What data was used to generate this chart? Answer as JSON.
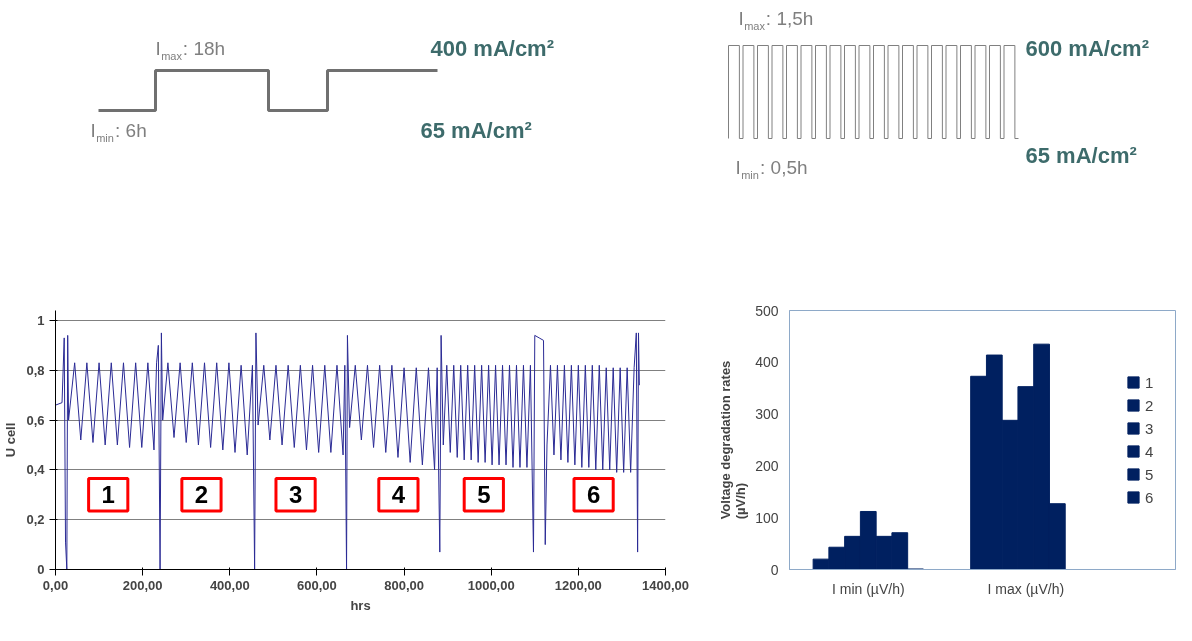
{
  "chart_data": [
    {
      "type": "other",
      "annotations": [
        "I$_{max}$: 18h",
        "400 mA/cm²",
        "I$_{min}$: 6h",
        "65 mA/cm²",
        "I$_{max}$: 1,5h",
        "600 mA/cm²",
        "I$_{min}$: 0,5h",
        "65 mA/cm²"
      ]
    },
    {
      "type": "line",
      "xlabel": "hrs",
      "ylabel": "U cell",
      "xlim": [
        0,
        1400
      ],
      "ylim": [
        0,
        1.04
      ],
      "xticks": [
        {
          "value": 0,
          "label": "0,00"
        },
        {
          "value": 200,
          "label": "200,00"
        },
        {
          "value": 400,
          "label": "400,00"
        },
        {
          "value": 600,
          "label": "600,00"
        },
        {
          "value": 800,
          "label": "800,00"
        },
        {
          "value": 1000,
          "label": "1000,00"
        },
        {
          "value": 1200,
          "label": "1200,00"
        },
        {
          "value": 1400,
          "label": "1400,00"
        }
      ],
      "yticks": [
        0,
        {
          "value": 0.2,
          "label": "0,2"
        },
        {
          "value": 0.4,
          "label": "0,4"
        },
        {
          "value": 0.6,
          "label": "0,6"
        },
        {
          "value": 0.8,
          "label": "0,8"
        },
        1
      ],
      "grid": "y",
      "legend": false,
      "marker": "none",
      "line_style": "solid",
      "annotations": [
        {
          "text": "1",
          "x": 121,
          "y": 0.3
        },
        {
          "text": "2",
          "x": 335,
          "y": 0.3
        },
        {
          "text": "3",
          "x": 551,
          "y": 0.3
        },
        {
          "text": "4",
          "x": 787,
          "y": 0.3
        },
        {
          "text": "5",
          "x": 983,
          "y": 0.3
        },
        {
          "text": "6",
          "x": 1235,
          "y": 0.3
        }
      ],
      "series": [
        {
          "color": "#2b2b95",
          "x": [
            0,
            15,
            20,
            23,
            26,
            28,
            30,
            44,
            58,
            72,
            86,
            100,
            114,
            128,
            142,
            156,
            170,
            184,
            198,
            212,
            226,
            232,
            236,
            240,
            243,
            246,
            258,
            272,
            286,
            300,
            314,
            328,
            342,
            356,
            370,
            384,
            398,
            412,
            426,
            440,
            452,
            457,
            460,
            465,
            478,
            492,
            506,
            520,
            534,
            548,
            562,
            576,
            590,
            604,
            618,
            632,
            646,
            660,
            664,
            668,
            670,
            675,
            688,
            702,
            716,
            730,
            744,
            758,
            772,
            786,
            800,
            814,
            828,
            842,
            856,
            870,
            876,
            882,
            885,
            890,
            898,
            906,
            914,
            922,
            930,
            938,
            946,
            954,
            962,
            970,
            978,
            986,
            994,
            1002,
            1010,
            1018,
            1026,
            1034,
            1042,
            1050,
            1058,
            1066,
            1074,
            1082,
            1090,
            1097,
            1100,
            1110,
            1120,
            1124,
            1128,
            1136,
            1144,
            1152,
            1160,
            1168,
            1176,
            1184,
            1192,
            1200,
            1208,
            1216,
            1224,
            1232,
            1240,
            1248,
            1256,
            1264,
            1272,
            1280,
            1288,
            1296,
            1304,
            1312,
            1320,
            1328,
            1333,
            1336,
            1338,
            1340
          ],
          "values": [
            0.66,
            0.67,
            0.93,
            0.11,
            0.0,
            0.94,
            0.6,
            0.83,
            0.52,
            0.83,
            0.51,
            0.83,
            0.5,
            0.83,
            0.5,
            0.83,
            0.49,
            0.83,
            0.49,
            0.83,
            0.48,
            0.83,
            0.9,
            0.0,
            0.95,
            0.6,
            0.83,
            0.53,
            0.83,
            0.51,
            0.83,
            0.5,
            0.83,
            0.49,
            0.83,
            0.48,
            0.83,
            0.47,
            0.82,
            0.46,
            0.82,
            0.0,
            0.95,
            0.58,
            0.82,
            0.52,
            0.82,
            0.5,
            0.82,
            0.49,
            0.82,
            0.48,
            0.82,
            0.47,
            0.82,
            0.47,
            0.82,
            0.46,
            0.82,
            0.0,
            0.94,
            0.57,
            0.82,
            0.52,
            0.82,
            0.49,
            0.82,
            0.47,
            0.82,
            0.45,
            0.81,
            0.43,
            0.81,
            0.42,
            0.81,
            0.4,
            0.81,
            0.07,
            0.94,
            0.5,
            0.82,
            0.47,
            0.82,
            0.45,
            0.82,
            0.44,
            0.82,
            0.44,
            0.82,
            0.43,
            0.82,
            0.43,
            0.82,
            0.42,
            0.82,
            0.42,
            0.82,
            0.42,
            0.82,
            0.41,
            0.82,
            0.41,
            0.82,
            0.41,
            0.82,
            0.07,
            0.94,
            0.93,
            0.92,
            0.1,
            0.5,
            0.82,
            0.46,
            0.82,
            0.44,
            0.82,
            0.43,
            0.82,
            0.42,
            0.82,
            0.41,
            0.82,
            0.41,
            0.82,
            0.4,
            0.82,
            0.4,
            0.81,
            0.4,
            0.81,
            0.39,
            0.81,
            0.39,
            0.81,
            0.39,
            0.81,
            0.95,
            0.07,
            0.95,
            0.74
          ]
        }
      ]
    },
    {
      "type": "bar",
      "ylabel": "Voltage degradation rates\n(µV/h)",
      "categories": [
        "I min (µV/h)",
        "I max (µV/h)"
      ],
      "ylim": [
        0,
        500
      ],
      "yticks": [
        0,
        100,
        200,
        300,
        400,
        500
      ],
      "grid": false,
      "legend": "right",
      "series": [
        {
          "name": "1",
          "color": "#002060",
          "values": [
            20,
            373
          ]
        },
        {
          "name": "2",
          "color": "#002060",
          "values": [
            43,
            414
          ]
        },
        {
          "name": "3",
          "color": "#002060",
          "values": [
            64,
            288
          ]
        },
        {
          "name": "4",
          "color": "#002060",
          "values": [
            112,
            353
          ]
        },
        {
          "name": "5",
          "color": "#002060",
          "values": [
            64,
            435
          ]
        },
        {
          "name": "6",
          "color": "#002060",
          "values": [
            71,
            127
          ]
        },
        {
          "color": "#002060",
          "values": [
            1,
            0
          ]
        }
      ]
    }
  ]
}
